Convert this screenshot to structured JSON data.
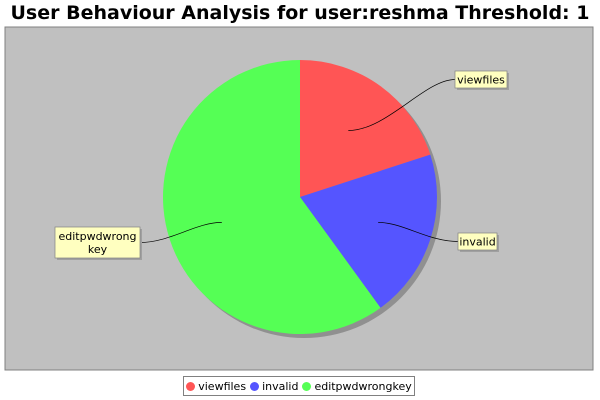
{
  "chart_data": {
    "type": "pie",
    "title": "User Behaviour Analysis for user:reshma Threshold: 1",
    "categories": [
      "viewfiles",
      "invalid",
      "editpwdwrongkey"
    ],
    "values": [
      1,
      1,
      3
    ],
    "slice_labels": [
      "viewfiles",
      "invalid",
      "editpwdwrong\nkey"
    ],
    "colors": [
      "#ff5555",
      "#5555ff",
      "#55ff55"
    ],
    "legend": {
      "position": "bottom",
      "items": [
        "viewfiles",
        "invalid",
        "editpwdwrongkey"
      ]
    },
    "background_color": "#c0c0c0",
    "grid": false
  }
}
